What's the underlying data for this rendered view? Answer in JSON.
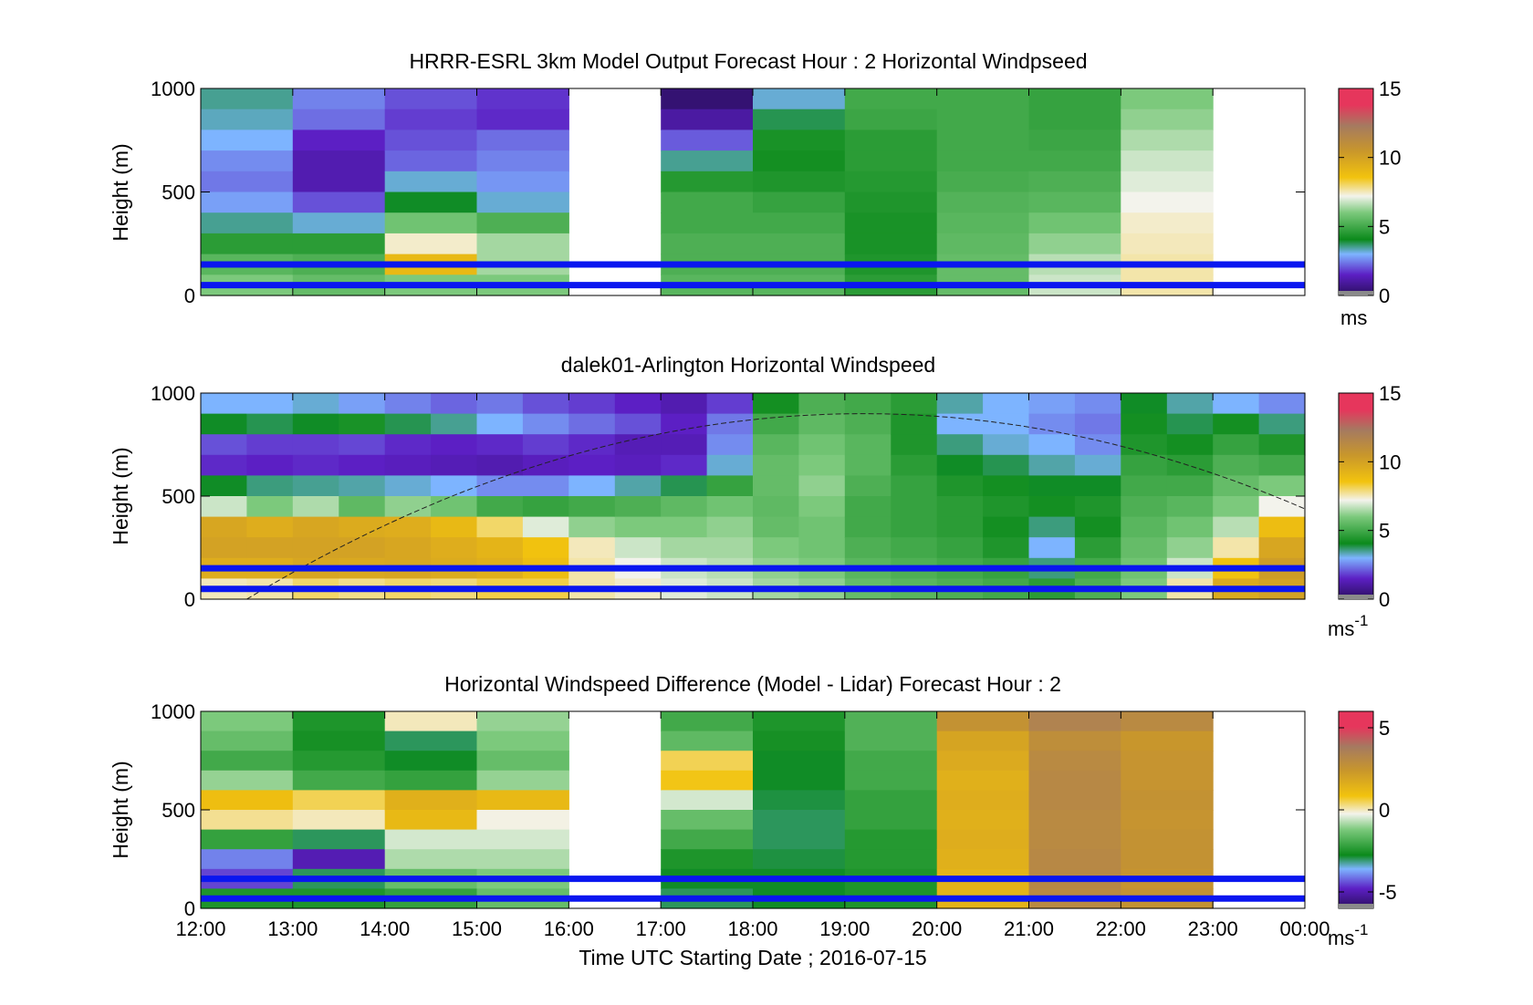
{
  "figure": {
    "xlabel": "Time UTC  Starting Date ; 2016-07-15",
    "x_ticks": [
      "12:00",
      "13:00",
      "14:00",
      "15:00",
      "16:00",
      "17:00",
      "18:00",
      "19:00",
      "20:00",
      "21:00",
      "22:00",
      "23:00",
      "00:00"
    ],
    "ylabel": "Height (m)",
    "y_ticks": [
      "0",
      "500",
      "1000"
    ]
  },
  "chart_data": [
    {
      "type": "heatmap",
      "title": "HRRR-ESRL 3km Model Output   Forecast Hour : 2 Horizontal Windpseed",
      "ylabel": "Height (m)",
      "ylim": [
        0,
        1000
      ],
      "xlim": [
        "12:00",
        "00:00"
      ],
      "colorbar": {
        "ticks": [
          "0",
          "5",
          "10",
          "15"
        ],
        "range": [
          0,
          15
        ],
        "unit": "ms"
      },
      "hour_columns": [
        "12:00",
        "13:00",
        "14:00",
        "15:00",
        "16:00",
        "17:00",
        "18:00",
        "19:00",
        "20:00",
        "21:00",
        "22:00",
        "23:00"
      ],
      "heights_m": [
        1000,
        900,
        800,
        700,
        600,
        500,
        400,
        300,
        200,
        100
      ],
      "columns": [
        {
          "hour": "12:00",
          "values": [
            3.5,
            3.3,
            3.0,
            2.6,
            2.4,
            2.8,
            3.5,
            4.6,
            5.4,
            6.0
          ]
        },
        {
          "hour": "13:00",
          "values": [
            2.5,
            2.3,
            1.5,
            1.2,
            1.2,
            2.0,
            3.2,
            4.6,
            5.2,
            5.6
          ]
        },
        {
          "hour": "14:00",
          "values": [
            2.0,
            1.8,
            2.0,
            2.2,
            3.2,
            4.0,
            5.8,
            7.4,
            9.0,
            6.0
          ]
        },
        {
          "hour": "15:00",
          "values": [
            1.7,
            1.6,
            2.3,
            2.5,
            2.7,
            3.2,
            5.2,
            6.4,
            6.4,
            6.0
          ]
        },
        {
          "hour": "16:00",
          "values": null
        },
        {
          "hour": "17:00",
          "values": [
            0.3,
            1.0,
            2.1,
            3.5,
            4.5,
            5.0,
            5.0,
            5.2,
            5.2,
            5.4
          ]
        },
        {
          "hour": "18:00",
          "values": [
            3.2,
            3.8,
            4.3,
            4.2,
            4.4,
            4.8,
            5.0,
            5.2,
            5.2,
            5.4
          ]
        },
        {
          "hour": "19:00",
          "values": [
            5.0,
            4.9,
            4.6,
            4.6,
            4.5,
            4.4,
            4.3,
            4.3,
            4.4,
            4.6
          ]
        },
        {
          "hour": "20:00",
          "values": [
            5.0,
            5.0,
            5.0,
            5.0,
            5.1,
            5.3,
            5.4,
            5.5,
            5.6,
            5.6
          ]
        },
        {
          "hour": "21:00",
          "values": [
            4.8,
            4.8,
            4.9,
            5.0,
            5.2,
            5.4,
            5.8,
            6.2,
            6.6,
            6.8
          ]
        },
        {
          "hour": "22:00",
          "values": [
            6.0,
            6.2,
            6.5,
            6.8,
            7.0,
            7.2,
            7.4,
            7.5,
            7.6,
            7.6
          ]
        },
        {
          "hour": "23:00",
          "values": null
        }
      ],
      "reference_lines_m": [
        150,
        50
      ]
    },
    {
      "type": "heatmap",
      "title": "dalek01-Arlington  Horizontal Windspeed",
      "ylabel": "Height (m)",
      "ylim": [
        0,
        1000
      ],
      "xlim": [
        "12:00",
        "00:00"
      ],
      "colorbar": {
        "ticks": [
          "0",
          "5",
          "10",
          "15"
        ],
        "range": [
          0,
          15
        ],
        "unit": "ms",
        "unit_exp": "-1"
      },
      "profile_times": [
        "12:00",
        "12:30",
        "13:00",
        "13:30",
        "14:00",
        "14:30",
        "15:00",
        "15:30",
        "16:00",
        "16:30",
        "17:00",
        "17:30",
        "18:00",
        "18:30",
        "19:00",
        "19:30",
        "20:00",
        "20:30",
        "21:00",
        "21:30",
        "22:00",
        "22:30",
        "23:00",
        "23:30"
      ],
      "profile_heights_m": [
        950,
        850,
        750,
        650,
        550,
        450,
        350,
        250,
        150,
        50
      ],
      "profiles": [
        [
          3.0,
          4.0,
          2.0,
          1.6,
          4.0,
          6.8,
          9.8,
          10.0,
          9.5,
          7.5
        ],
        [
          3.0,
          3.8,
          1.8,
          1.5,
          3.6,
          6.0,
          9.5,
          10.0,
          9.5,
          7.6
        ],
        [
          3.2,
          4.0,
          1.8,
          1.6,
          3.5,
          6.5,
          9.8,
          10.0,
          9.8,
          8.0
        ],
        [
          2.8,
          4.3,
          1.9,
          1.5,
          3.4,
          5.5,
          9.6,
          10.0,
          9.7,
          7.8
        ],
        [
          2.5,
          3.8,
          1.6,
          1.4,
          3.2,
          6.2,
          9.5,
          9.8,
          9.8,
          8.0
        ],
        [
          2.2,
          3.5,
          1.5,
          1.3,
          3.0,
          5.8,
          9.0,
          9.5,
          9.6,
          7.9
        ],
        [
          2.4,
          3.0,
          1.6,
          1.2,
          2.6,
          5.0,
          8.0,
          9.2,
          9.4,
          8.2
        ],
        [
          2.0,
          2.6,
          1.8,
          1.4,
          2.6,
          4.8,
          7.0,
          8.6,
          8.8,
          8.2
        ],
        [
          1.8,
          2.3,
          1.6,
          1.5,
          3.0,
          5.0,
          6.2,
          7.5,
          7.6,
          7.6
        ],
        [
          1.5,
          2.0,
          1.3,
          1.4,
          3.4,
          5.2,
          6.0,
          6.8,
          7.2,
          7.4
        ],
        [
          1.2,
          1.5,
          1.3,
          1.6,
          3.8,
          5.5,
          6.0,
          6.4,
          6.8,
          7.0
        ],
        [
          1.8,
          2.4,
          2.6,
          3.2,
          4.8,
          5.8,
          6.2,
          6.4,
          6.6,
          6.8
        ],
        [
          4.2,
          5.0,
          5.4,
          5.6,
          5.6,
          5.5,
          5.6,
          6.0,
          6.2,
          6.4
        ],
        [
          5.2,
          5.5,
          5.8,
          6.0,
          6.2,
          6.0,
          5.8,
          5.8,
          6.0,
          6.2
        ],
        [
          5.0,
          5.2,
          5.4,
          5.4,
          5.2,
          5.0,
          5.0,
          5.2,
          5.4,
          5.6
        ],
        [
          4.6,
          4.4,
          4.4,
          4.6,
          4.8,
          4.8,
          4.8,
          5.0,
          5.2,
          5.4
        ],
        [
          3.4,
          3.0,
          3.6,
          4.0,
          4.4,
          4.6,
          4.6,
          4.8,
          5.0,
          5.2
        ],
        [
          3.0,
          3.0,
          3.2,
          3.8,
          4.2,
          4.4,
          4.2,
          4.4,
          4.8,
          5.0
        ],
        [
          2.8,
          2.6,
          3.0,
          3.4,
          4.0,
          4.2,
          3.6,
          3.0,
          3.6,
          4.6
        ],
        [
          2.6,
          2.4,
          2.6,
          3.2,
          4.0,
          4.4,
          4.2,
          4.6,
          5.0,
          5.2
        ],
        [
          4.0,
          4.2,
          4.4,
          4.8,
          5.0,
          5.2,
          5.4,
          5.6,
          5.8,
          6.0
        ],
        [
          3.4,
          3.8,
          4.2,
          4.6,
          5.0,
          5.4,
          5.8,
          6.2,
          6.8,
          7.6
        ],
        [
          3.0,
          4.2,
          4.8,
          5.2,
          5.6,
          6.0,
          6.6,
          7.6,
          8.6,
          9.6
        ],
        [
          2.6,
          3.6,
          4.4,
          5.0,
          6.0,
          7.2,
          8.8,
          9.8,
          10.2,
          10.0
        ]
      ],
      "reference_lines_m": [
        150,
        50
      ]
    },
    {
      "type": "heatmap",
      "title": "Horizontal Windspeed Difference (Model - Lidar) Forecast Hour : 2",
      "ylabel": "Height (m)",
      "ylim": [
        0,
        1000
      ],
      "xlim": [
        "12:00",
        "00:00"
      ],
      "colorbar": {
        "ticks": [
          "-5",
          "0",
          "5"
        ],
        "range": [
          -6,
          6
        ],
        "unit": "ms",
        "unit_exp": "-1"
      },
      "hour_columns": [
        "12:00",
        "13:00",
        "14:00",
        "15:00",
        "16:00",
        "17:00",
        "18:00",
        "19:00",
        "20:00",
        "21:00",
        "22:00",
        "23:00"
      ],
      "heights_m": [
        1000,
        900,
        800,
        700,
        600,
        500,
        400,
        300,
        200,
        100
      ],
      "columns": [
        {
          "hour": "12:00",
          "values": [
            -1.2,
            -1.5,
            -2.0,
            -1.0,
            1.0,
            0.2,
            -2.2,
            -4.0,
            -4.5,
            -2.5
          ]
        },
        {
          "hour": "13:00",
          "values": [
            -2.5,
            -2.6,
            -2.4,
            -2.0,
            0.5,
            0.0,
            -3.0,
            -5.0,
            -3.0,
            -2.5
          ]
        },
        {
          "hour": "14:00",
          "values": [
            0.0,
            -3.0,
            -2.8,
            -2.2,
            1.5,
            1.2,
            -0.5,
            -0.8,
            -1.5,
            -2.2
          ]
        },
        {
          "hour": "15:00",
          "values": [
            -1.0,
            -1.2,
            -1.5,
            -1.0,
            1.2,
            -0.2,
            -0.5,
            -0.8,
            -1.2,
            -1.5
          ]
        },
        {
          "hour": "16:00",
          "values": null
        },
        {
          "hour": "17:00",
          "values": [
            -2.0,
            -1.6,
            0.5,
            0.8,
            -0.5,
            -1.5,
            -2.0,
            -2.5,
            -2.8,
            -3.0
          ]
        },
        {
          "hour": "18:00",
          "values": [
            -2.5,
            -2.6,
            -2.8,
            -2.8,
            -2.9,
            -3.0,
            -3.0,
            -2.9,
            -2.8,
            -2.8
          ]
        },
        {
          "hour": "19:00",
          "values": [
            -1.8,
            -1.8,
            -2.0,
            -2.0,
            -2.2,
            -2.2,
            -2.4,
            -2.4,
            -2.5,
            -2.5
          ]
        },
        {
          "hour": "20:00",
          "values": [
            2.6,
            1.9,
            1.7,
            1.5,
            1.6,
            1.5,
            1.6,
            1.5,
            1.4,
            1.4
          ]
        },
        {
          "hour": "21:00",
          "values": [
            3.4,
            2.8,
            3.0,
            3.1,
            3.1,
            3.0,
            3.0,
            3.1,
            3.1,
            3.0
          ]
        },
        {
          "hour": "22:00",
          "values": [
            3.0,
            2.4,
            2.5,
            2.5,
            2.6,
            2.5,
            2.6,
            2.6,
            2.5,
            2.6
          ]
        },
        {
          "hour": "23:00",
          "values": null
        }
      ],
      "reference_lines_m": [
        150,
        50
      ]
    }
  ]
}
